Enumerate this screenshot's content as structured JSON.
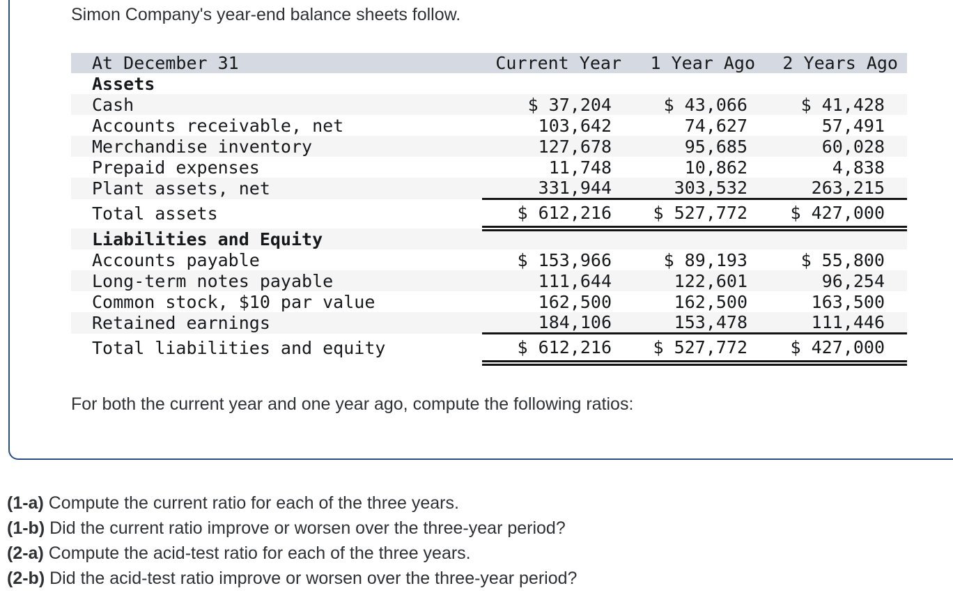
{
  "panel": {
    "intro": "Simon Company's year-end balance sheets follow.",
    "footer": "For both the current year and one year ago, compute the following ratios:"
  },
  "table": {
    "header": [
      "At December 31",
      "Current Year",
      "1 Year Ago",
      "2 Years Ago"
    ],
    "rows": [
      {
        "label": "Assets",
        "values": [
          "",
          "",
          ""
        ],
        "type": "section",
        "shaded": false,
        "rule": "none"
      },
      {
        "label": "Cash",
        "values": [
          "$ 37,204",
          "$ 43,066",
          "$ 41,428"
        ],
        "type": "item",
        "shaded": true,
        "rule": "none"
      },
      {
        "label": "Accounts receivable, net",
        "values": [
          "103,642",
          "74,627",
          "57,491"
        ],
        "type": "item",
        "shaded": false,
        "rule": "none"
      },
      {
        "label": "Merchandise inventory",
        "values": [
          "127,678",
          "95,685",
          "60,028"
        ],
        "type": "item",
        "shaded": true,
        "rule": "none"
      },
      {
        "label": "Prepaid expenses",
        "values": [
          "11,748",
          "10,862",
          "4,838"
        ],
        "type": "item",
        "shaded": false,
        "rule": "none"
      },
      {
        "label": "Plant assets, net",
        "values": [
          "331,944",
          "303,532",
          "263,215"
        ],
        "type": "item",
        "shaded": true,
        "rule": "single"
      },
      {
        "label": "Total assets",
        "values": [
          "$ 612,216",
          "$ 527,772",
          "$ 427,000"
        ],
        "type": "total",
        "shaded": false,
        "rule": "double"
      },
      {
        "label": "Liabilities and Equity",
        "values": [
          "",
          "",
          ""
        ],
        "type": "section",
        "shaded": true,
        "rule": "none"
      },
      {
        "label": "Accounts payable",
        "values": [
          "$ 153,966",
          "$ 89,193",
          "$ 55,800"
        ],
        "type": "item",
        "shaded": false,
        "rule": "none"
      },
      {
        "label": "Long-term notes payable",
        "values": [
          "111,644",
          "122,601",
          "96,254"
        ],
        "type": "item",
        "shaded": true,
        "rule": "none"
      },
      {
        "label": "Common stock, $10 par value",
        "values": [
          "162,500",
          "162,500",
          "163,500"
        ],
        "type": "item",
        "shaded": false,
        "rule": "none"
      },
      {
        "label": "Retained earnings",
        "values": [
          "184,106",
          "153,478",
          "111,446"
        ],
        "type": "item",
        "shaded": true,
        "rule": "single"
      },
      {
        "label": "Total liabilities and equity",
        "values": [
          "$ 612,216",
          "$ 527,772",
          "$ 427,000"
        ],
        "type": "total",
        "shaded": false,
        "rule": "double"
      }
    ]
  },
  "questions": [
    {
      "label": "(1-a)",
      "text": "Compute the current ratio for each of the three years."
    },
    {
      "label": "(1-b)",
      "text": "Did the current ratio improve or worsen over the three-year period?"
    },
    {
      "label": "(2-a)",
      "text": "Compute the acid-test ratio for each of the three years."
    },
    {
      "label": "(2-b)",
      "text": "Did the acid-test ratio improve or worsen over the three-year period?"
    }
  ],
  "colors": {
    "panel_border": "#2b4c7e",
    "table_header_bg": "#d5d9e1",
    "row_stripe_bg": "#f5f5f6",
    "table_text": "#17181a",
    "body_text": "#2e3033",
    "rule_line": "#141414"
  }
}
